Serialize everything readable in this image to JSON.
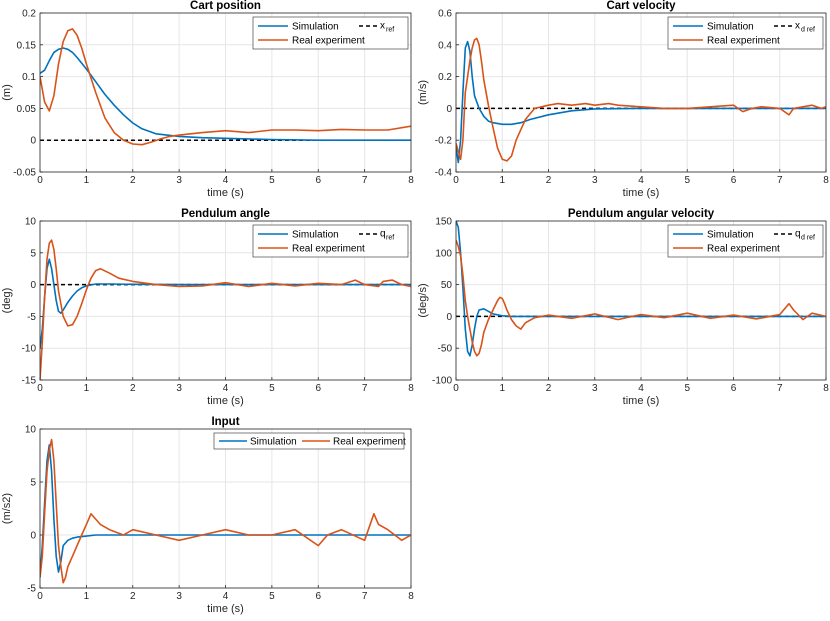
{
  "colors": {
    "simulation": "#0072BD",
    "experiment": "#D95319",
    "reference": "#000000",
    "grid": "#E6E6E6"
  },
  "chart_data": [
    {
      "id": "cart-position",
      "type": "line",
      "title": "Cart position",
      "xlabel": "time (s)",
      "ylabel": "(m)",
      "xlim": [
        0,
        8
      ],
      "ylim": [
        -0.05,
        0.2
      ],
      "xticks": [
        "0",
        "1",
        "2",
        "3",
        "4",
        "5",
        "6",
        "7",
        "8"
      ],
      "yticks": [
        "-0.05",
        "0",
        "0.05",
        "0.1",
        "0.15",
        "0.2"
      ],
      "legend": {
        "position": "top-right",
        "layout": "two-column",
        "simulation": "Simulation",
        "experiment": "Real experiment",
        "reference": "x",
        "reference_sub": "ref"
      },
      "series": [
        {
          "name": "Simulation",
          "role": "simulation",
          "x": [
            0,
            0.1,
            0.2,
            0.3,
            0.4,
            0.5,
            0.6,
            0.7,
            0.8,
            1,
            1.2,
            1.4,
            1.6,
            1.8,
            2,
            2.2,
            2.5,
            3,
            3.5,
            4,
            5,
            6,
            7,
            8
          ],
          "y": [
            0.105,
            0.11,
            0.125,
            0.138,
            0.143,
            0.145,
            0.143,
            0.138,
            0.13,
            0.112,
            0.092,
            0.072,
            0.055,
            0.04,
            0.027,
            0.018,
            0.01,
            0.006,
            0.004,
            0.003,
            0.001,
            0.0,
            0.0,
            0.0
          ]
        },
        {
          "name": "Real experiment",
          "role": "experiment",
          "x": [
            0,
            0.1,
            0.2,
            0.3,
            0.4,
            0.5,
            0.6,
            0.7,
            0.8,
            0.9,
            1,
            1.2,
            1.4,
            1.6,
            1.8,
            2,
            2.2,
            2.4,
            2.6,
            2.8,
            3,
            3.5,
            4,
            4.5,
            5,
            5.5,
            6,
            6.5,
            7,
            7.5,
            8
          ],
          "y": [
            0.1,
            0.06,
            0.046,
            0.07,
            0.12,
            0.155,
            0.172,
            0.175,
            0.165,
            0.145,
            0.12,
            0.075,
            0.035,
            0.012,
            0.0,
            -0.006,
            -0.007,
            -0.003,
            0.002,
            0.006,
            0.008,
            0.012,
            0.015,
            0.012,
            0.016,
            0.016,
            0.015,
            0.017,
            0.016,
            0.016,
            0.022
          ]
        },
        {
          "name": "x ref",
          "role": "reference",
          "x": [
            0,
            8
          ],
          "y": [
            0,
            0
          ]
        }
      ]
    },
    {
      "id": "cart-velocity",
      "type": "line",
      "title": "Cart velocity",
      "xlabel": "time (s)",
      "ylabel": "(m/s)",
      "xlim": [
        0,
        8
      ],
      "ylim": [
        -0.4,
        0.6
      ],
      "xticks": [
        "0",
        "1",
        "2",
        "3",
        "4",
        "5",
        "6",
        "7",
        "8"
      ],
      "yticks": [
        "-0.4",
        "-0.2",
        "0",
        "0.2",
        "0.4",
        "0.6"
      ],
      "legend": {
        "position": "top-right",
        "layout": "two-column",
        "simulation": "Simulation",
        "experiment": "Real experiment",
        "reference": "x",
        "reference_sub": "d ref"
      },
      "series": [
        {
          "name": "Simulation",
          "role": "simulation",
          "x": [
            0,
            0.05,
            0.1,
            0.15,
            0.2,
            0.25,
            0.3,
            0.35,
            0.4,
            0.5,
            0.6,
            0.7,
            0.8,
            1,
            1.2,
            1.4,
            1.6,
            2,
            2.5,
            3,
            4,
            5,
            6,
            7,
            8
          ],
          "y": [
            -0.24,
            -0.34,
            -0.2,
            0.1,
            0.38,
            0.42,
            0.36,
            0.2,
            0.08,
            0.0,
            -0.05,
            -0.08,
            -0.09,
            -0.1,
            -0.1,
            -0.09,
            -0.07,
            -0.04,
            -0.015,
            -0.003,
            0.0,
            0.0,
            0.0,
            0.0,
            0.0
          ]
        },
        {
          "name": "Real experiment",
          "role": "experiment",
          "x": [
            0,
            0.1,
            0.15,
            0.2,
            0.3,
            0.35,
            0.4,
            0.45,
            0.5,
            0.55,
            0.6,
            0.7,
            0.8,
            0.9,
            1,
            1.1,
            1.2,
            1.3,
            1.5,
            1.7,
            2,
            2.2,
            2.5,
            2.8,
            3,
            3.3,
            3.5,
            4,
            4.5,
            5,
            5.5,
            6,
            6.2,
            6.4,
            6.6,
            7,
            7.2,
            7.3,
            7.5,
            7.7,
            7.9,
            8
          ],
          "y": [
            -0.22,
            -0.32,
            -0.2,
            0.1,
            0.3,
            0.38,
            0.43,
            0.44,
            0.4,
            0.3,
            0.18,
            0.02,
            -0.12,
            -0.25,
            -0.32,
            -0.33,
            -0.3,
            -0.2,
            -0.07,
            0.0,
            0.02,
            0.03,
            0.02,
            0.03,
            0.02,
            0.03,
            0.02,
            0.01,
            0.0,
            0.0,
            0.01,
            0.02,
            -0.02,
            0.0,
            0.01,
            0.0,
            -0.04,
            0.0,
            0.01,
            0.02,
            0.0,
            0.01
          ]
        },
        {
          "name": "x d ref",
          "role": "reference",
          "x": [
            0,
            8
          ],
          "y": [
            0,
            0
          ]
        }
      ]
    },
    {
      "id": "pendulum-angle",
      "type": "line",
      "title": "Pendulum angle",
      "xlabel": "time (s)",
      "ylabel": "(deg)",
      "xlim": [
        0,
        8
      ],
      "ylim": [
        -15,
        10
      ],
      "xticks": [
        "0",
        "1",
        "2",
        "3",
        "4",
        "5",
        "6",
        "7",
        "8"
      ],
      "yticks": [
        "-15",
        "-10",
        "-5",
        "0",
        "5",
        "10"
      ],
      "legend": {
        "position": "top-right",
        "layout": "two-column",
        "simulation": "Simulation",
        "experiment": "Real experiment",
        "reference": "q",
        "reference_sub": "ref"
      },
      "series": [
        {
          "name": "Simulation",
          "role": "simulation",
          "x": [
            0,
            0.05,
            0.1,
            0.15,
            0.2,
            0.25,
            0.3,
            0.35,
            0.4,
            0.45,
            0.5,
            0.6,
            0.7,
            0.8,
            0.9,
            1,
            1.2,
            1.5,
            2,
            3,
            4,
            5,
            6,
            7,
            8
          ],
          "y": [
            -10,
            -7,
            -2,
            2.5,
            4,
            2.5,
            0,
            -2.5,
            -4.2,
            -4.5,
            -4,
            -2.8,
            -1.8,
            -1,
            -0.5,
            -0.2,
            0.1,
            0.1,
            0.05,
            0,
            0,
            0,
            0,
            0,
            0
          ]
        },
        {
          "name": "Real experiment",
          "role": "experiment",
          "x": [
            0,
            0.05,
            0.1,
            0.15,
            0.2,
            0.25,
            0.3,
            0.35,
            0.4,
            0.5,
            0.6,
            0.7,
            0.8,
            0.9,
            1,
            1.1,
            1.2,
            1.3,
            1.5,
            1.7,
            2,
            2.5,
            3,
            3.5,
            4,
            4.5,
            5,
            5.5,
            6,
            6.5,
            6.8,
            7,
            7.3,
            7.4,
            7.6,
            7.8,
            8
          ],
          "y": [
            -15,
            -9,
            -2,
            4,
            6.5,
            7,
            5.5,
            2.5,
            -1,
            -5,
            -6.5,
            -6.3,
            -5,
            -3,
            -0.8,
            1,
            2.2,
            2.5,
            1.8,
            1,
            0.5,
            0,
            -0.3,
            -0.2,
            0.3,
            -0.3,
            0.2,
            -0.2,
            0.2,
            0,
            0.7,
            0,
            -0.3,
            0.5,
            0.7,
            0,
            -0.3
          ]
        },
        {
          "name": "q ref",
          "role": "reference",
          "x": [
            0,
            8
          ],
          "y": [
            0,
            0
          ]
        }
      ]
    },
    {
      "id": "pendulum-angular-velocity",
      "type": "line",
      "title": "Pendulum angular velocity",
      "xlabel": "time (s)",
      "ylabel": "(deg/s)",
      "xlim": [
        0,
        8
      ],
      "ylim": [
        -100,
        150
      ],
      "xticks": [
        "0",
        "1",
        "2",
        "3",
        "4",
        "5",
        "6",
        "7",
        "8"
      ],
      "yticks": [
        "-100",
        "-50",
        "0",
        "50",
        "100",
        "150"
      ],
      "legend": {
        "position": "top-right",
        "layout": "two-column",
        "simulation": "Simulation",
        "experiment": "Real experiment",
        "reference": "q",
        "reference_sub": "d ref"
      },
      "series": [
        {
          "name": "Simulation",
          "role": "simulation",
          "x": [
            0,
            0.05,
            0.1,
            0.15,
            0.2,
            0.25,
            0.3,
            0.35,
            0.4,
            0.45,
            0.5,
            0.6,
            0.7,
            0.8,
            1,
            1.2,
            1.5,
            2,
            3,
            4,
            5,
            6,
            7,
            8
          ],
          "y": [
            150,
            140,
            100,
            45,
            -20,
            -55,
            -62,
            -45,
            -20,
            0,
            10,
            12,
            8,
            4,
            1,
            0,
            0,
            0,
            0,
            0,
            0,
            0,
            0,
            0
          ]
        },
        {
          "name": "Real experiment",
          "role": "experiment",
          "x": [
            0,
            0.05,
            0.1,
            0.15,
            0.2,
            0.25,
            0.3,
            0.35,
            0.4,
            0.45,
            0.5,
            0.55,
            0.6,
            0.7,
            0.8,
            0.9,
            0.95,
            1,
            1.05,
            1.1,
            1.2,
            1.3,
            1.4,
            1.5,
            1.7,
            2,
            2.5,
            3,
            3.5,
            4,
            4.5,
            5,
            5.5,
            6,
            6.5,
            7,
            7.2,
            7.3,
            7.5,
            7.7,
            8
          ],
          "y": [
            120,
            110,
            95,
            65,
            25,
            0,
            -20,
            -40,
            -55,
            -62,
            -58,
            -45,
            -25,
            -5,
            10,
            25,
            30,
            28,
            20,
            10,
            -5,
            -15,
            -20,
            -10,
            -2,
            2,
            -3,
            4,
            -5,
            3,
            -2,
            5,
            -3,
            2,
            -4,
            3,
            20,
            10,
            -5,
            5,
            0
          ]
        },
        {
          "name": "q d ref",
          "role": "reference",
          "x": [
            0,
            8
          ],
          "y": [
            0,
            0
          ]
        }
      ]
    },
    {
      "id": "input",
      "type": "line",
      "title": "Input",
      "xlabel": "time (s)",
      "ylabel": "(m/s2)",
      "xlim": [
        0,
        8
      ],
      "ylim": [
        -5,
        10
      ],
      "xticks": [
        "0",
        "1",
        "2",
        "3",
        "4",
        "5",
        "6",
        "7",
        "8"
      ],
      "yticks": [
        "-5",
        "0",
        "5",
        "10"
      ],
      "legend": {
        "position": "top-right",
        "layout": "horizontal",
        "simulation": "Simulation",
        "experiment": "Real experiment"
      },
      "series": [
        {
          "name": "Simulation",
          "role": "simulation",
          "x": [
            0,
            0.05,
            0.1,
            0.15,
            0.2,
            0.25,
            0.3,
            0.35,
            0.4,
            0.45,
            0.5,
            0.6,
            0.7,
            0.8,
            1,
            1.2,
            1.5,
            2,
            3,
            4,
            5,
            6,
            7,
            8
          ],
          "y": [
            -4,
            -1,
            3,
            7,
            8.5,
            6,
            1.5,
            -2,
            -3.5,
            -2.5,
            -1,
            -0.5,
            -0.3,
            -0.2,
            -0.1,
            0,
            0,
            0,
            0,
            0,
            0,
            0,
            0,
            0
          ]
        },
        {
          "name": "Real experiment",
          "role": "experiment",
          "x": [
            0,
            0.05,
            0.1,
            0.15,
            0.2,
            0.25,
            0.3,
            0.35,
            0.4,
            0.45,
            0.5,
            0.55,
            0.6,
            0.7,
            0.8,
            0.9,
            1,
            1.1,
            1.2,
            1.3,
            1.5,
            1.8,
            2,
            2.5,
            3,
            3.5,
            4,
            4.5,
            5,
            5.5,
            6,
            6.2,
            6.5,
            7,
            7.2,
            7.3,
            7.5,
            7.8,
            8
          ],
          "y": [
            -4,
            -2,
            2,
            6,
            8,
            9,
            7,
            3,
            -1,
            -3,
            -4.5,
            -4,
            -3,
            -2,
            -1,
            0,
            1,
            2,
            1.5,
            1,
            0.5,
            0,
            0.5,
            0,
            -0.5,
            0,
            0.5,
            0,
            0,
            0.5,
            -1,
            0,
            0.5,
            -0.5,
            2,
            1,
            0.5,
            -0.5,
            0
          ]
        }
      ]
    }
  ]
}
